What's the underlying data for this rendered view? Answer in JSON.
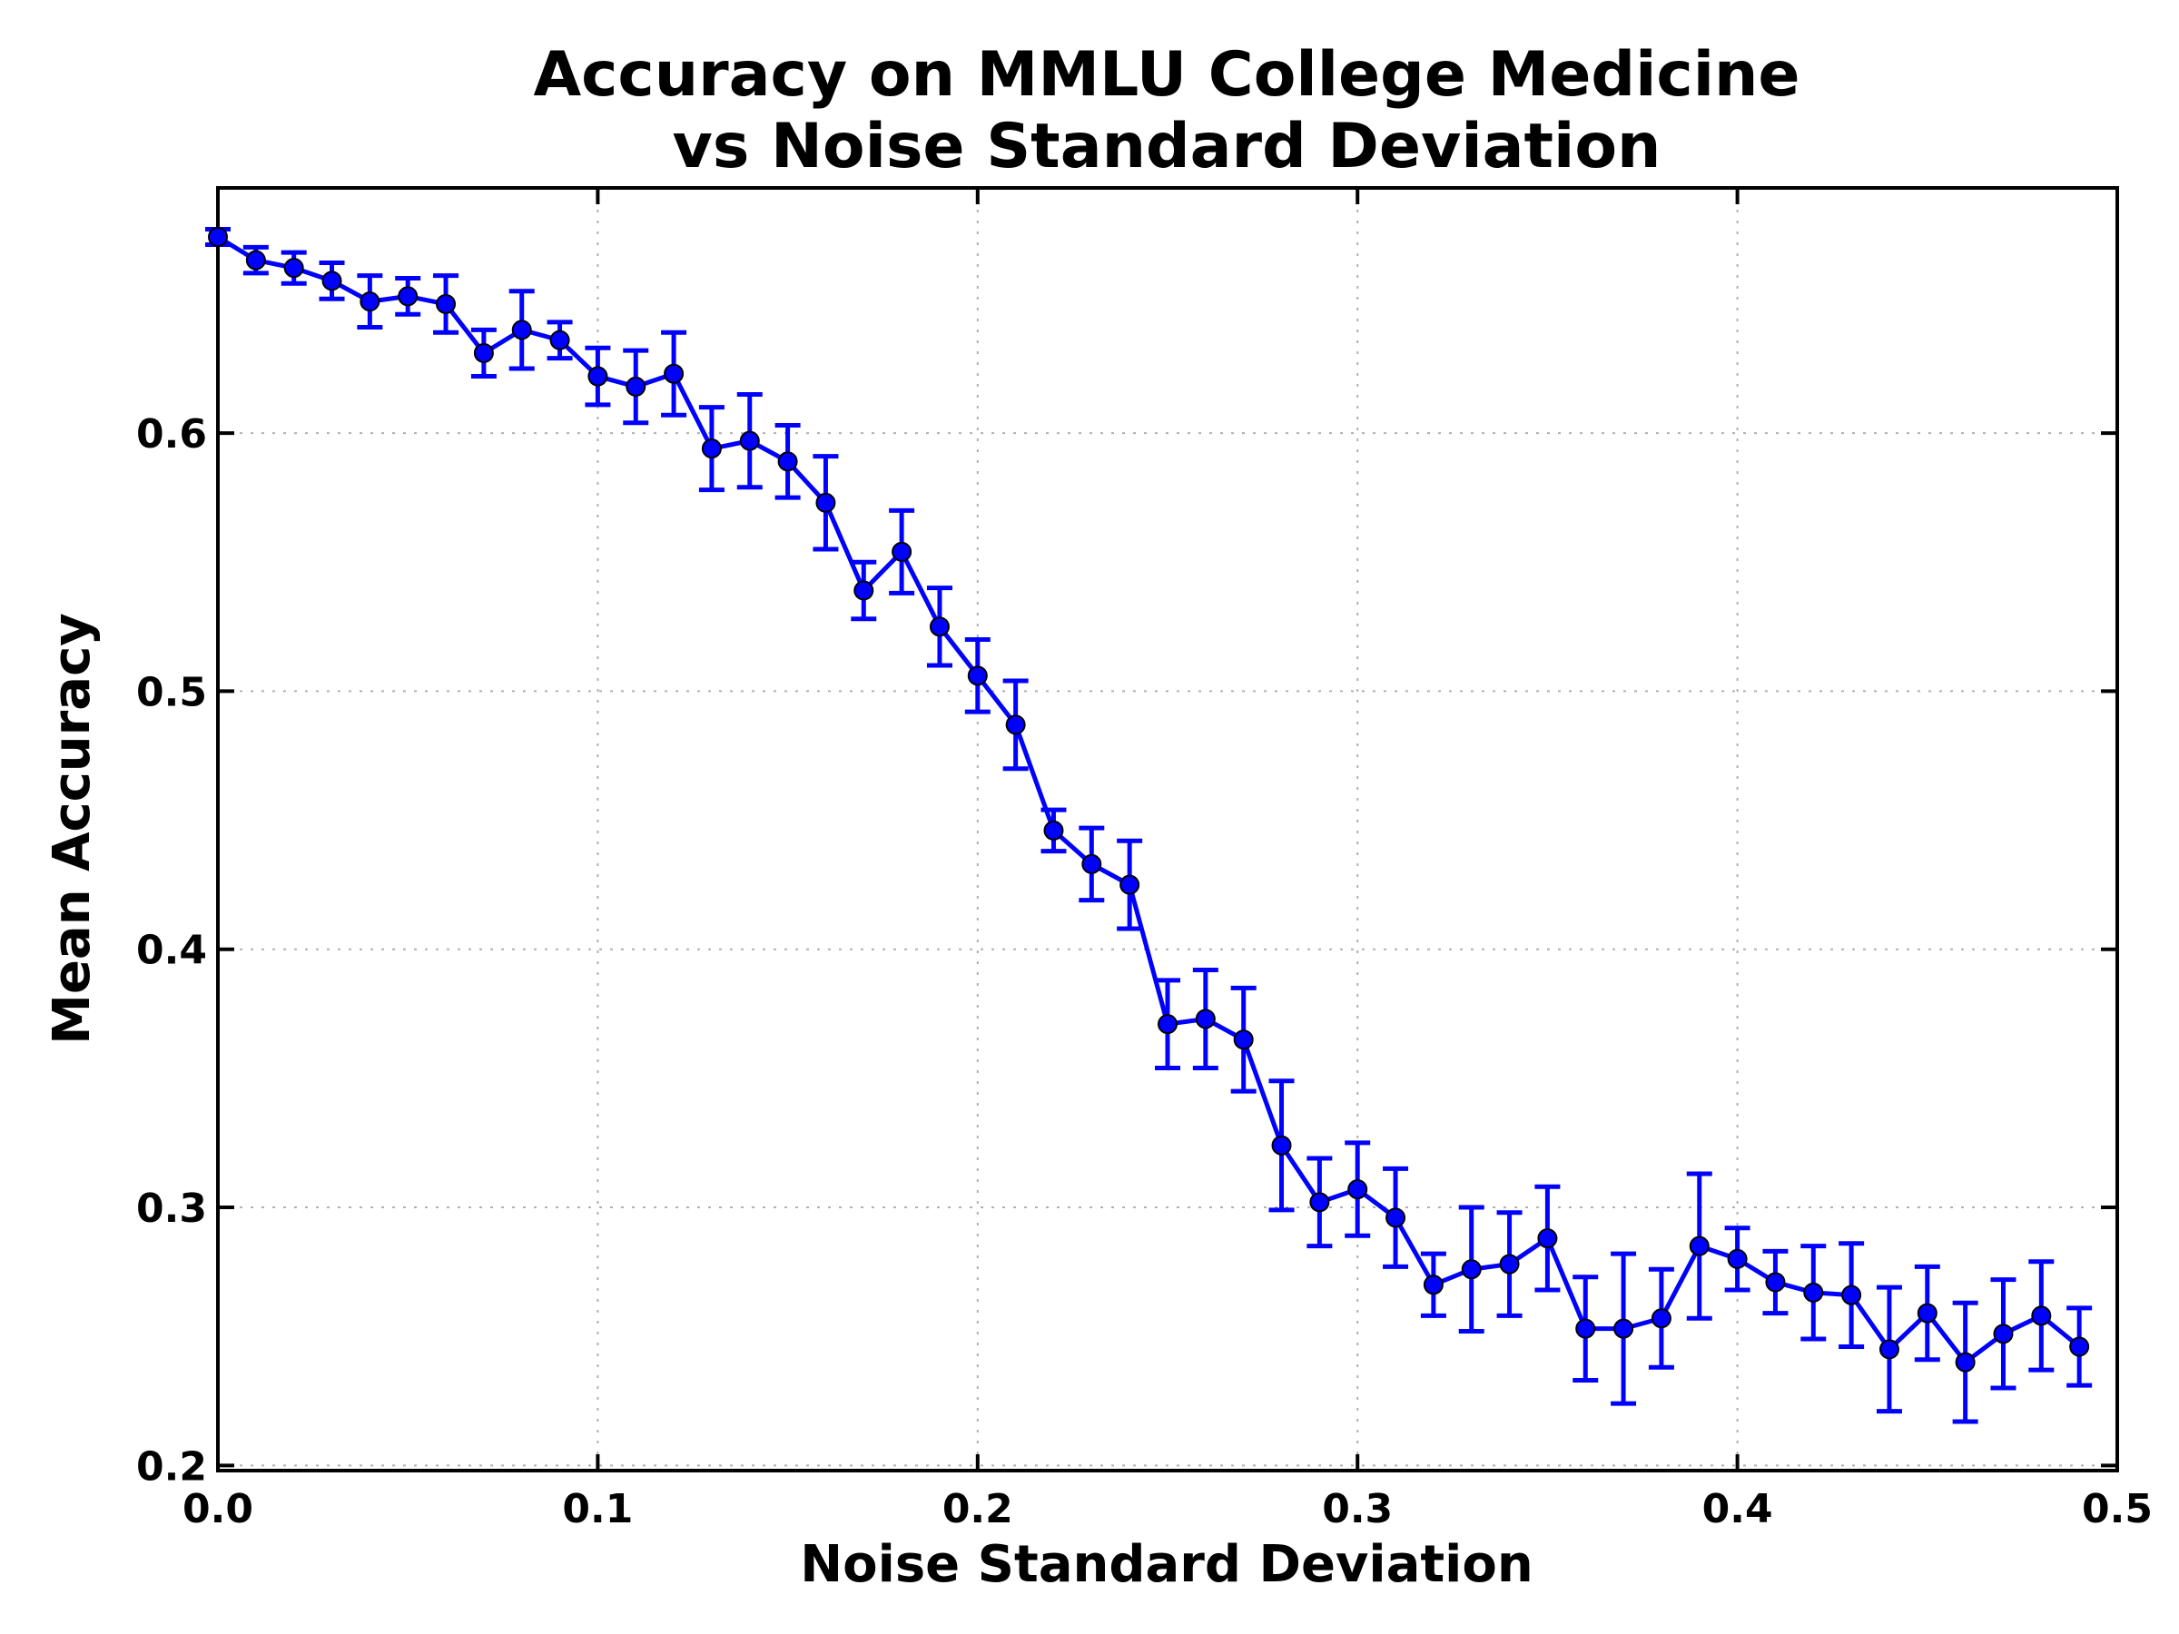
{
  "chart_data": {
    "type": "line",
    "title_line1": "Accuracy on MMLU College Medicine",
    "title_line2": "vs Noise Standard Deviation",
    "xlabel": "Noise Standard Deviation",
    "ylabel": "Mean Accuracy",
    "xlim": [
      0.0,
      0.5
    ],
    "ylim": [
      0.198,
      0.695
    ],
    "grid": true,
    "error_bars": true,
    "line_color": "#0000ff",
    "marker_color": "#0000ff",
    "xticks": [
      "0.0",
      "0.1",
      "0.2",
      "0.3",
      "0.4",
      "0.5"
    ],
    "yticks": [
      "0.2",
      "0.3",
      "0.4",
      "0.5",
      "0.6"
    ],
    "series": [
      {
        "x": [
          0.0,
          0.01,
          0.02,
          0.03,
          0.04,
          0.05,
          0.06,
          0.07,
          0.08,
          0.09,
          0.1,
          0.11,
          0.12,
          0.13,
          0.14,
          0.15,
          0.16,
          0.17,
          0.18,
          0.19,
          0.2,
          0.21,
          0.22,
          0.23,
          0.24,
          0.25,
          0.26,
          0.27,
          0.28,
          0.29,
          0.3,
          0.31,
          0.32,
          0.33,
          0.34,
          0.35,
          0.36,
          0.37,
          0.38,
          0.39,
          0.4,
          0.41,
          0.42,
          0.43,
          0.44,
          0.45,
          0.46,
          0.47,
          0.48,
          0.49
        ],
        "y": [
          0.676,
          0.667,
          0.664,
          0.659,
          0.651,
          0.653,
          0.65,
          0.631,
          0.64,
          0.636,
          0.622,
          0.618,
          0.623,
          0.594,
          0.597,
          0.589,
          0.573,
          0.539,
          0.554,
          0.525,
          0.506,
          0.487,
          0.446,
          0.433,
          0.425,
          0.371,
          0.373,
          0.365,
          0.324,
          0.302,
          0.307,
          0.296,
          0.27,
          0.276,
          0.278,
          0.288,
          0.253,
          0.253,
          0.257,
          0.285,
          0.28,
          0.271,
          0.267,
          0.266,
          0.245,
          0.259,
          0.24,
          0.251,
          0.258,
          0.246
        ],
        "err": [
          0.003,
          0.005,
          0.006,
          0.007,
          0.01,
          0.007,
          0.011,
          0.009,
          0.015,
          0.007,
          0.011,
          0.014,
          0.016,
          0.016,
          0.018,
          0.014,
          0.018,
          0.011,
          0.016,
          0.015,
          0.014,
          0.017,
          0.008,
          0.014,
          0.017,
          0.017,
          0.019,
          0.02,
          0.025,
          0.017,
          0.018,
          0.019,
          0.012,
          0.024,
          0.02,
          0.02,
          0.02,
          0.029,
          0.019,
          0.028,
          0.012,
          0.012,
          0.018,
          0.02,
          0.024,
          0.018,
          0.023,
          0.021,
          0.021,
          0.015
        ]
      }
    ]
  }
}
